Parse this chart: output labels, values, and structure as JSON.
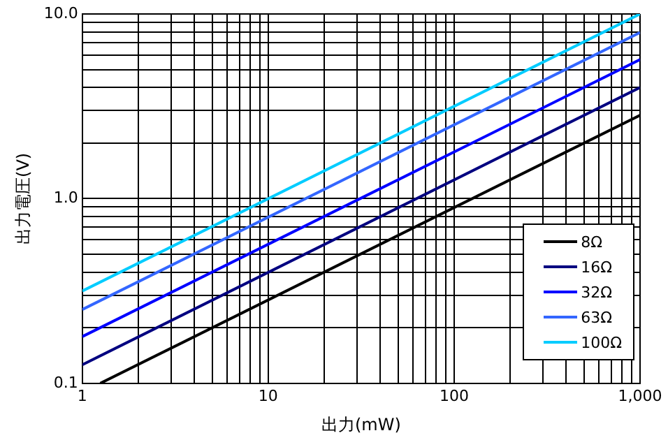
{
  "chart_data": {
    "type": "line",
    "xlabel": "出力(mW)",
    "ylabel": "出力電圧(V)",
    "log": "xy",
    "grid": true,
    "legend": "bottom right",
    "marker": "none",
    "line_style": "solid",
    "xlim": [
      1,
      1000
    ],
    "ylim": [
      0.1,
      10
    ],
    "xticks": [
      1,
      {
        "value": 2,
        "label": null
      },
      {
        "value": 3,
        "label": null
      },
      {
        "value": 4,
        "label": null
      },
      {
        "value": 5,
        "label": null
      },
      {
        "value": 6,
        "label": null
      },
      {
        "value": 7,
        "label": null
      },
      {
        "value": 8,
        "label": null
      },
      {
        "value": 9,
        "label": null
      },
      10,
      {
        "value": 20,
        "label": null
      },
      {
        "value": 30,
        "label": null
      },
      {
        "value": 40,
        "label": null
      },
      {
        "value": 50,
        "label": null
      },
      {
        "value": 60,
        "label": null
      },
      {
        "value": 70,
        "label": null
      },
      {
        "value": 80,
        "label": null
      },
      {
        "value": 90,
        "label": null
      },
      100,
      {
        "value": 200,
        "label": null
      },
      {
        "value": 300,
        "label": null
      },
      {
        "value": 400,
        "label": null
      },
      {
        "value": 500,
        "label": null
      },
      {
        "value": 600,
        "label": null
      },
      {
        "value": 700,
        "label": null
      },
      {
        "value": 800,
        "label": null
      },
      {
        "value": 900,
        "label": null
      },
      {
        "value": 1000,
        "label": "1,000"
      }
    ],
    "yticks": [
      {
        "value": 0.1,
        "label": "0.1"
      },
      {
        "value": 0.2,
        "label": null
      },
      {
        "value": 0.3,
        "label": null
      },
      {
        "value": 0.4,
        "label": null
      },
      {
        "value": 0.5,
        "label": null
      },
      {
        "value": 0.6,
        "label": null
      },
      {
        "value": 0.7,
        "label": null
      },
      {
        "value": 0.8,
        "label": null
      },
      {
        "value": 0.9,
        "label": null
      },
      {
        "value": 1,
        "label": "1.0"
      },
      {
        "value": 2,
        "label": null
      },
      {
        "value": 3,
        "label": null
      },
      {
        "value": 4,
        "label": null
      },
      {
        "value": 5,
        "label": null
      },
      {
        "value": 6,
        "label": null
      },
      {
        "value": 7,
        "label": null
      },
      {
        "value": 8,
        "label": null
      },
      {
        "value": 9,
        "label": null
      },
      {
        "value": 10,
        "label": "10.0"
      }
    ],
    "series": [
      {
        "name": "8Ω",
        "color": "#000000",
        "x": [
          1.25,
          1000
        ],
        "values": [
          0.1,
          2.83
        ]
      },
      {
        "name": "16Ω",
        "color": "#000080",
        "x": [
          1,
          1000
        ],
        "values": [
          0.126,
          4.0
        ]
      },
      {
        "name": "32Ω",
        "color": "#0000ff",
        "x": [
          1,
          1000
        ],
        "values": [
          0.179,
          5.66
        ]
      },
      {
        "name": "63Ω",
        "color": "#3366ff",
        "x": [
          1,
          1000
        ],
        "values": [
          0.251,
          7.94
        ]
      },
      {
        "name": "100Ω",
        "color": "#00ccff",
        "x": [
          1,
          1000
        ],
        "values": [
          0.316,
          10.0
        ]
      }
    ]
  }
}
